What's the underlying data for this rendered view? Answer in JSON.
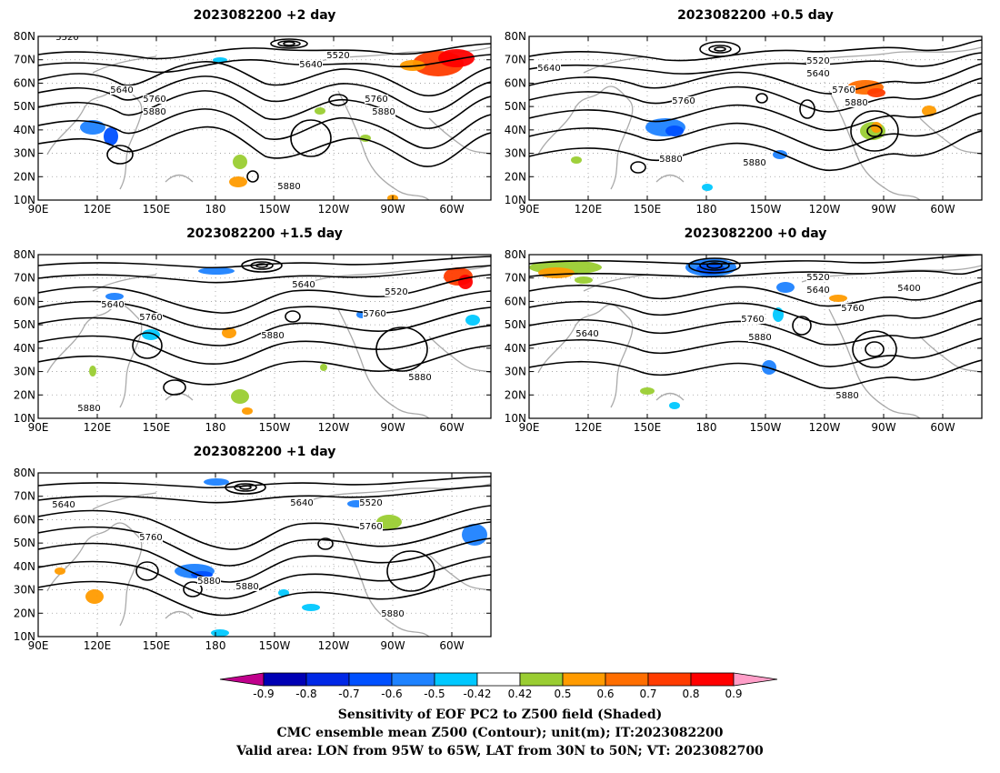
{
  "panels": [
    {
      "title": "2023082200 +2 day",
      "contour_labels": [
        "5520",
        "5520",
        "5640",
        "5640",
        "5760",
        "5760",
        "5880",
        "5880",
        "5880"
      ]
    },
    {
      "title": "2023082200 +0.5 day",
      "contour_labels": [
        "5520",
        "5640",
        "5640",
        "5760",
        "5760",
        "5880",
        "5880",
        "5880"
      ]
    },
    {
      "title": "2023082200 +1.5 day",
      "contour_labels": [
        "5640",
        "5520",
        "5640",
        "5760",
        "5760",
        "5880",
        "5880",
        "5880"
      ]
    },
    {
      "title": "2023082200 +0 day",
      "contour_labels": [
        "5520",
        "5400",
        "5640",
        "5640",
        "5760",
        "5760",
        "5880",
        "5880"
      ]
    },
    {
      "title": "2023082200 +1 day",
      "contour_labels": [
        "5640",
        "5640",
        "5520",
        "5760",
        "5760",
        "5880",
        "5880",
        "5880"
      ]
    }
  ],
  "axes": {
    "lat_ticks": [
      "10N",
      "20N",
      "30N",
      "40N",
      "50N",
      "60N",
      "70N",
      "80N"
    ],
    "lon_ticks": [
      "90E",
      "120E",
      "150E",
      "180",
      "150W",
      "120W",
      "90W",
      "60W"
    ]
  },
  "colorbar": {
    "tick_labels": [
      "-0.9",
      "-0.8",
      "-0.7",
      "-0.6",
      "-0.5",
      "-0.42",
      "0.42",
      "0.5",
      "0.6",
      "0.7",
      "0.8",
      "0.9"
    ],
    "colors": [
      "#c0008c",
      "#0000b4",
      "#0028e6",
      "#0050ff",
      "#1e82ff",
      "#00c8ff",
      "#ffffff",
      "#9acd32",
      "#ff9b00",
      "#ff6e00",
      "#ff3c00",
      "#ff0000",
      "#ff9ec8"
    ]
  },
  "caption": {
    "line1": "Sensitivity of EOF PC2 to Z500 field (Shaded)",
    "line2": "CMC ensemble mean Z500 (Contour); unit(m); IT:2023082200",
    "line3": "Valid area: LON from 95W to 65W, LAT from 30N to 50N; VT: 2023082700"
  }
}
